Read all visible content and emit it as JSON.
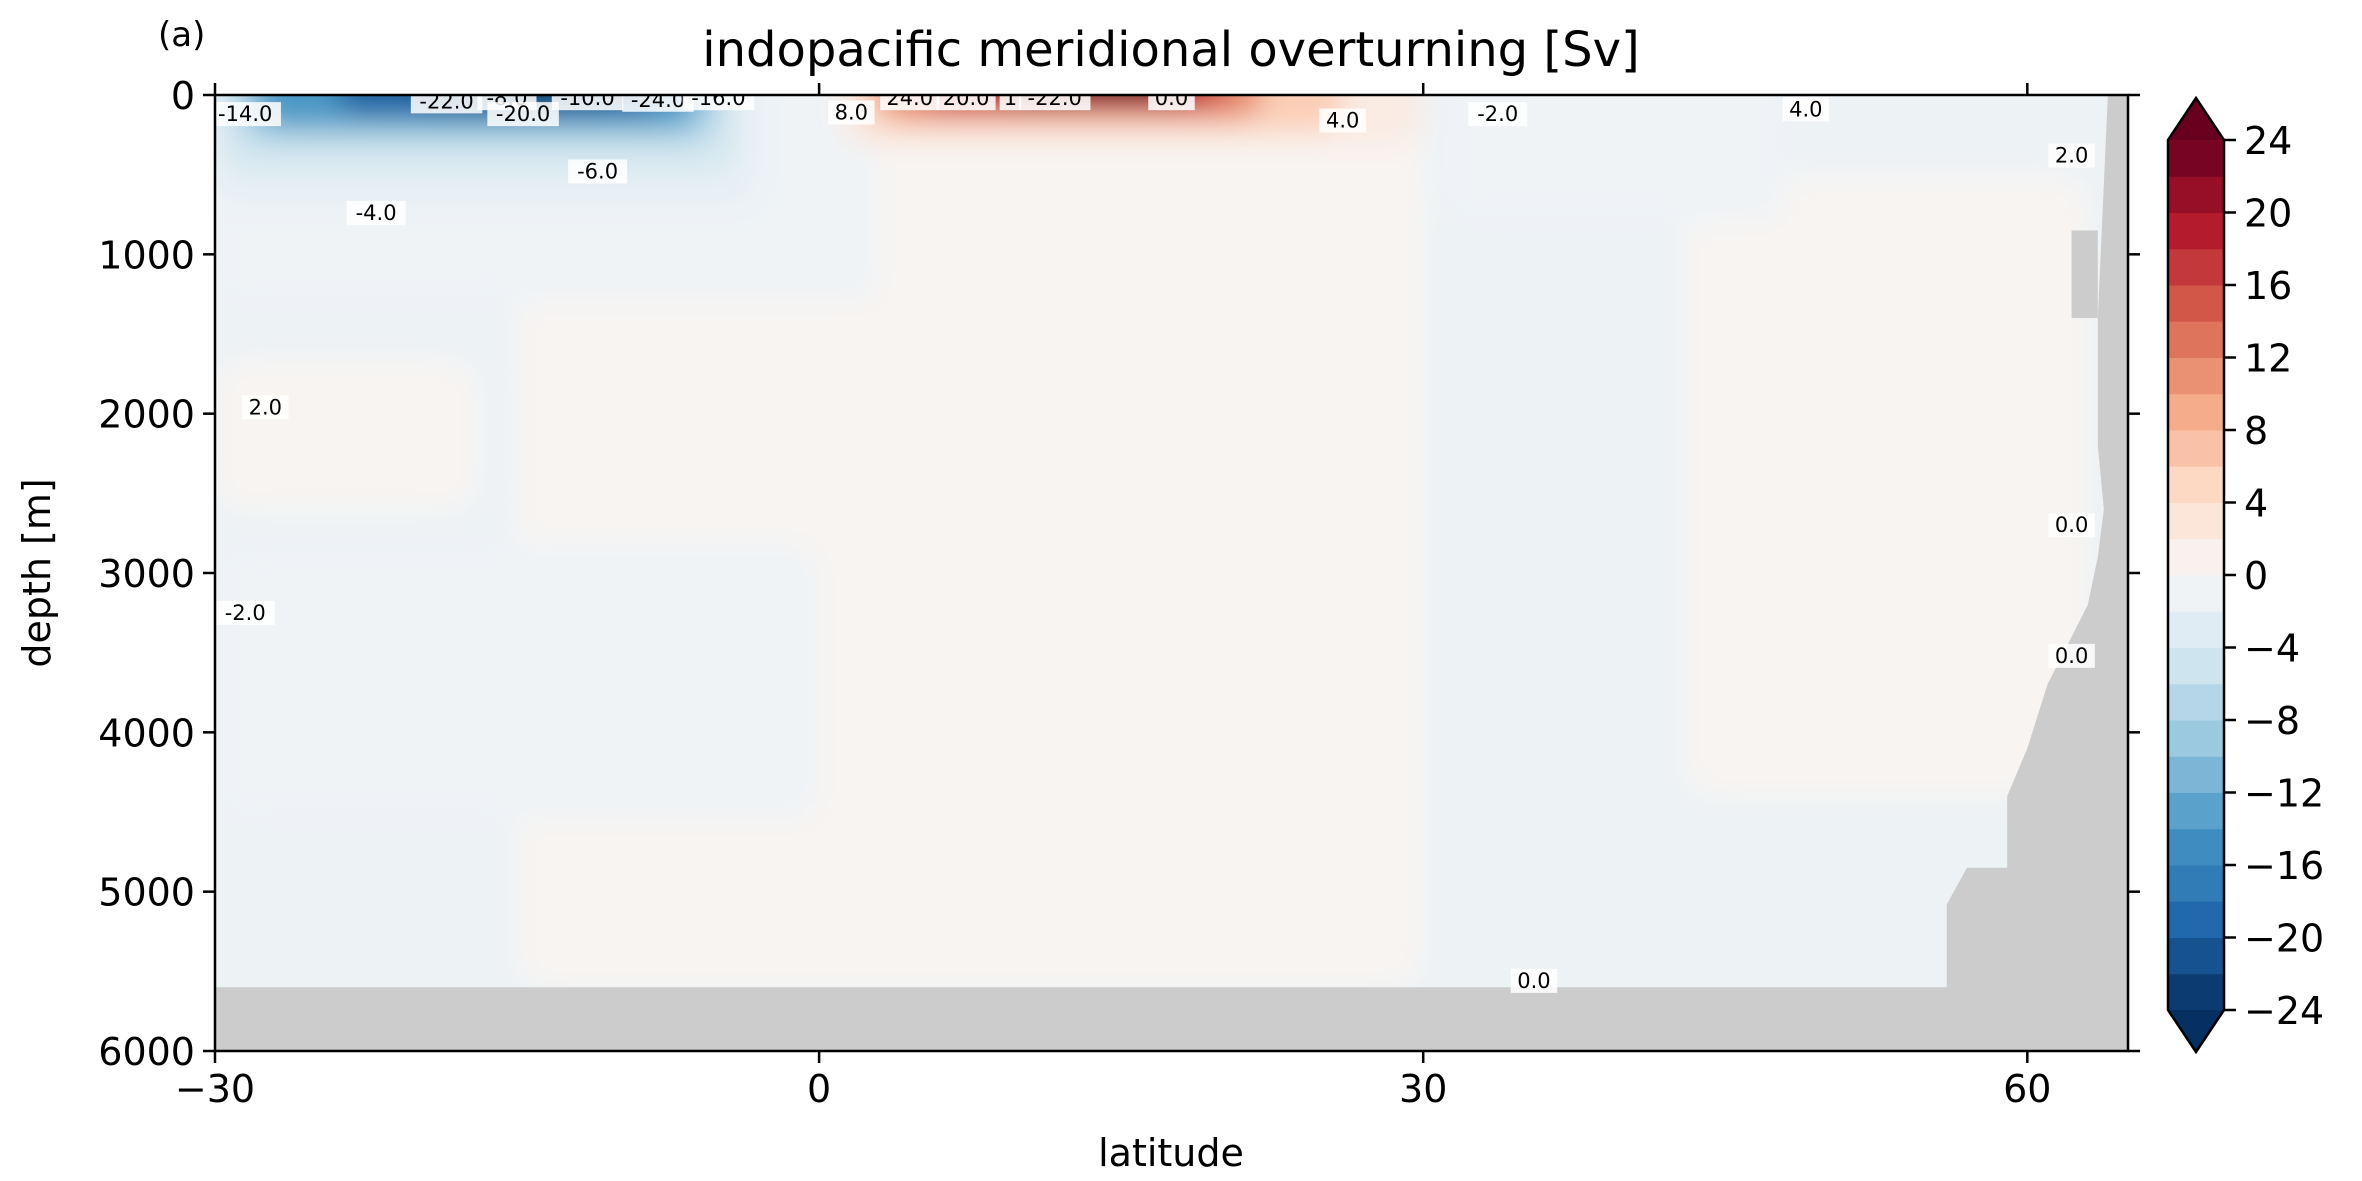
{
  "panel_label": "(a)",
  "chart_data": {
    "type": "heatmap",
    "title": "indopacific meridional overturning [Sv]",
    "xlabel": "latitude",
    "ylabel": "depth [m]",
    "xlim": [
      -30,
      65
    ],
    "ylim": [
      6000,
      0
    ],
    "xticks": [
      -30,
      0,
      30,
      60
    ],
    "xtick_labels": [
      "−30",
      "0",
      "30",
      "60"
    ],
    "yticks": [
      0,
      1000,
      2000,
      3000,
      4000,
      5000,
      6000
    ],
    "ytick_labels": [
      "0",
      "1000",
      "2000",
      "3000",
      "4000",
      "5000",
      "6000"
    ],
    "colorbar": {
      "min": -24,
      "max": 24,
      "step": 2,
      "extend": "both",
      "ticks": [
        24,
        20,
        16,
        12,
        8,
        4,
        0,
        -4,
        -8,
        -12,
        -16,
        -20,
        -24
      ],
      "tick_labels": [
        "24",
        "20",
        "16",
        "12",
        "8",
        "4",
        "0",
        "−4",
        "−8",
        "−12",
        "−16",
        "−20",
        "−24"
      ]
    },
    "contour_labels": [
      {
        "text": "-14.0",
        "lat": -28.5,
        "depth": 120
      },
      {
        "text": "-22.0",
        "lat": -18.5,
        "depth": 40
      },
      {
        "text": "-8.0",
        "lat": -15.5,
        "depth": 20
      },
      {
        "text": "-20.0",
        "lat": -14.7,
        "depth": 120
      },
      {
        "text": "-10.0",
        "lat": -11.5,
        "depth": 20
      },
      {
        "text": "-24.0",
        "lat": -8.0,
        "depth": 30
      },
      {
        "text": "-16.0",
        "lat": -5.0,
        "depth": 20
      },
      {
        "text": "-6.0",
        "lat": -11.0,
        "depth": 480
      },
      {
        "text": "-4.0",
        "lat": -22.0,
        "depth": 740
      },
      {
        "text": "2.0",
        "lat": -27.5,
        "depth": 1960
      },
      {
        "text": "-2.0",
        "lat": -28.5,
        "depth": 3250
      },
      {
        "text": "8.0",
        "lat": 1.6,
        "depth": 110
      },
      {
        "text": "24.0",
        "lat": 4.5,
        "depth": 20
      },
      {
        "text": "20.0",
        "lat": 7.3,
        "depth": 20
      },
      {
        "text": "1",
        "lat": 9.5,
        "depth": 20
      },
      {
        "text": "-22.0",
        "lat": 11.7,
        "depth": 20
      },
      {
        "text": "0.0",
        "lat": 17.5,
        "depth": 20
      },
      {
        "text": "4.0",
        "lat": 26.0,
        "depth": 160
      },
      {
        "text": "-2.0",
        "lat": 33.7,
        "depth": 120
      },
      {
        "text": "4.0",
        "lat": 49.0,
        "depth": 90
      },
      {
        "text": "2.0",
        "lat": 62.2,
        "depth": 380
      },
      {
        "text": "0.0",
        "lat": 62.2,
        "depth": 2700
      },
      {
        "text": "0.0",
        "lat": 62.2,
        "depth": 3520
      },
      {
        "text": "0.0",
        "lat": 35.5,
        "depth": 5560
      }
    ],
    "field_regions": [
      {
        "value": 0.5,
        "lat": [
          -30,
          -17
        ],
        "depth": [
          1850,
          2600
        ]
      },
      {
        "value": 0.5,
        "lat": [
          -15,
          30
        ],
        "depth": [
          0,
          5600
        ]
      },
      {
        "value": 0.5,
        "lat": [
          43,
          63
        ],
        "depth": [
          700,
          4400
        ]
      },
      {
        "value": -1.0,
        "lat": [
          -30,
          3
        ],
        "depth": [
          0,
          1300
        ]
      },
      {
        "value": -1.0,
        "lat": [
          -30,
          0
        ],
        "depth": [
          3000,
          4550
        ]
      },
      {
        "value": -1.0,
        "lat": [
          31,
          48
        ],
        "depth": [
          0,
          800
        ]
      },
      {
        "value": -2.0,
        "lat": [
          -30,
          -3
        ],
        "depth": [
          0,
          700
        ]
      },
      {
        "value": -4.0,
        "lat": [
          -30,
          -4
        ],
        "depth": [
          0,
          500
        ]
      },
      {
        "value": -8.0,
        "lat": [
          -29,
          -5
        ],
        "depth": [
          0,
          300
        ]
      },
      {
        "value": -14.0,
        "lat": [
          -28,
          -6
        ],
        "depth": [
          0,
          200
        ]
      },
      {
        "value": -20.0,
        "lat": [
          -24,
          -8
        ],
        "depth": [
          0,
          110
        ]
      },
      {
        "value": -24.0,
        "lat": [
          -20,
          -10
        ],
        "depth": [
          0,
          50
        ]
      },
      {
        "value": 2.0,
        "lat": [
          1,
          30
        ],
        "depth": [
          0,
          320
        ]
      },
      {
        "value": 6.0,
        "lat": [
          2,
          26
        ],
        "depth": [
          0,
          220
        ]
      },
      {
        "value": 12.0,
        "lat": [
          3,
          22
        ],
        "depth": [
          0,
          140
        ]
      },
      {
        "value": 18.0,
        "lat": [
          5,
          20
        ],
        "depth": [
          0,
          80
        ]
      },
      {
        "value": 24.0,
        "lat": [
          9,
          18
        ],
        "depth": [
          0,
          40
        ]
      }
    ],
    "mask_color": "#cccccc"
  }
}
